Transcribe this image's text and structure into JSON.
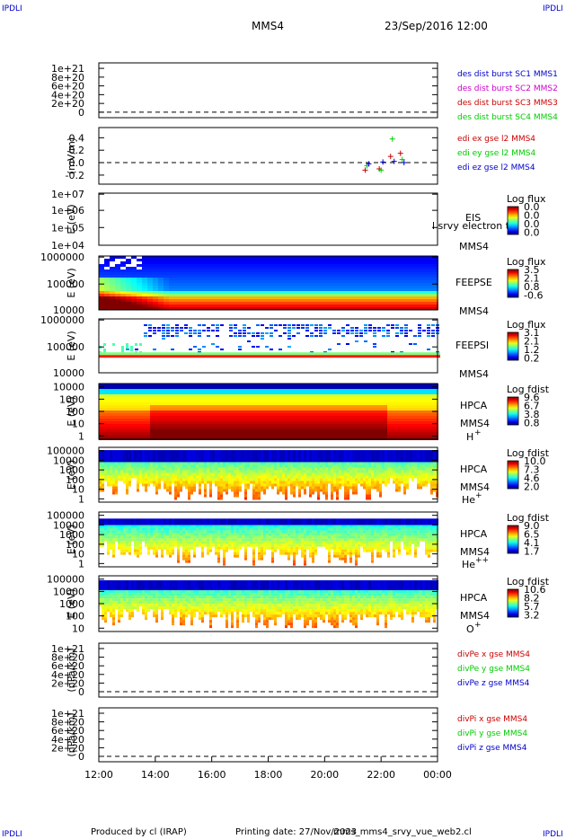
{
  "corner_label": "IPDLI",
  "header": {
    "mission": "MMS4",
    "datetime": "23/Sep/2016 12:00"
  },
  "footer": {
    "produced_by": "Produced by cl (IRAP)",
    "printing_date": "Printing date: 27/Nov/2023",
    "filename": "mms_mms4_srvy_vue_web2.cl"
  },
  "colors": {
    "red": "#cc0000",
    "green": "#00cc00",
    "blue": "#0000cc",
    "magenta": "#cc00cc",
    "black": "#000000"
  },
  "chart_data": {
    "type": "heatmap",
    "x_ticks": [
      "12:00",
      "14:00",
      "16:00",
      "18:00",
      "20:00",
      "22:00",
      "00:00"
    ],
    "x_range": [
      "12:00",
      "00:00"
    ],
    "panels": [
      {
        "id": "des-dist",
        "kind": "lines",
        "ylabel": "",
        "yticks": [
          "1e+21",
          "8e+20",
          "6e+20",
          "4e+20",
          "2e+20",
          "0"
        ],
        "legend": [
          {
            "text": "des dist burst SC1 MMS1",
            "color": "#0000cc"
          },
          {
            "text": "des dist burst SC2 MMS2",
            "color": "#cc00cc"
          },
          {
            "text": "des dist burst SC3 MMS3",
            "color": "#cc0000"
          },
          {
            "text": "des dist burst SC4 MMS4",
            "color": "#00cc00"
          }
        ]
      },
      {
        "id": "edi",
        "kind": "lines",
        "ylabel": "(mV/m)",
        "yticks": [
          "0.4",
          "0.2",
          "0.0",
          "-0.2"
        ],
        "legend": [
          {
            "text": "edi ex gse l2 MMS4",
            "color": "#cc0000"
          },
          {
            "text": "edi ey gse l2 MMS4",
            "color": "#00cc00"
          },
          {
            "text": "edi ez gse l2 MMS4",
            "color": "#0000cc"
          }
        ],
        "points": [
          {
            "t": 21.5,
            "ex": -0.12,
            "ey": -0.05,
            "ez": -0.02
          },
          {
            "t": 22.0,
            "ex": -0.1,
            "ey": -0.12,
            "ez": 0.01
          },
          {
            "t": 22.4,
            "ex": 0.1,
            "ey": 0.38,
            "ez": 0.02
          },
          {
            "t": 22.75,
            "ex": 0.15,
            "ey": 0.05,
            "ez": 0.0
          }
        ]
      },
      {
        "id": "eis",
        "kind": "spectro",
        "ylabel": "E (eV)",
        "yticks": [
          "1e+07",
          "1e+06",
          "1e+05",
          "1e+04"
        ],
        "right_label": [
          "EIS",
          "MMS4"
        ],
        "overlap_text": "l srvy electron to",
        "cbar_title": "Log flux",
        "cbar_ticks": [
          "0.0",
          "0.0",
          "0.0",
          "0.0"
        ]
      },
      {
        "id": "feepse",
        "kind": "spectro",
        "ylabel": "E (eV)",
        "yticks": [
          "1000000",
          "100000",
          "10000"
        ],
        "right_label": [
          "FEEPSE",
          "MMS4"
        ],
        "cbar_title": "Log flux",
        "cbar_ticks": [
          "3.5",
          "2.1",
          "0.8",
          "-0.6"
        ]
      },
      {
        "id": "feepsi",
        "kind": "spectro",
        "ylabel": "E (eV)",
        "yticks": [
          "1000000",
          "100000",
          "10000"
        ],
        "right_label": [
          "FEEPSI",
          "MMS4"
        ],
        "cbar_title": "Log flux",
        "cbar_ticks": [
          "3.1",
          "2.1",
          "1.2",
          "0.2"
        ]
      },
      {
        "id": "hpca-h",
        "kind": "spectro",
        "ylabel": "E (eV)",
        "yticks": [
          "10000",
          "1000",
          "100",
          "10",
          "1"
        ],
        "right_label": [
          "HPCA",
          "MMS4"
        ],
        "species": "H",
        "species_sup": "+",
        "cbar_title": "Log fdist",
        "cbar_ticks": [
          "9.6",
          "6.7",
          "3.8",
          "0.8"
        ]
      },
      {
        "id": "hpca-he",
        "kind": "spectro",
        "ylabel": "E (eV)",
        "yticks": [
          "100000",
          "10000",
          "1000",
          "100",
          "10",
          "1"
        ],
        "right_label": [
          "HPCA",
          "MMS4"
        ],
        "species": "He",
        "species_sup": "+",
        "cbar_title": "Log fdist",
        "cbar_ticks": [
          "10.0",
          "7.3",
          "4.6",
          "2.0"
        ]
      },
      {
        "id": "hpca-he2",
        "kind": "spectro",
        "ylabel": "E (eV)",
        "yticks": [
          "100000",
          "10000",
          "1000",
          "100",
          "10",
          "1"
        ],
        "right_label": [
          "HPCA",
          "MMS4"
        ],
        "species": "He",
        "species_sup": "++",
        "cbar_title": "Log fdist",
        "cbar_ticks": [
          "9.0",
          "6.5",
          "4.1",
          "1.7"
        ]
      },
      {
        "id": "hpca-o",
        "kind": "spectro",
        "ylabel": "E (eV)",
        "yticks": [
          "100000",
          "10000",
          "1000",
          "100",
          "10"
        ],
        "right_label": [
          "HPCA",
          "MMS4"
        ],
        "species": "O",
        "species_sup": "+",
        "cbar_title": "Log fdist",
        "cbar_ticks": [
          "10.6",
          "8.2",
          "5.7",
          "3.2"
        ]
      },
      {
        "id": "divpe",
        "kind": "lines",
        "ylabel": "(nPa/km)",
        "yticks": [
          "1e+21",
          "8e+20",
          "6e+20",
          "4e+20",
          "2e+20",
          "0"
        ],
        "legend": [
          {
            "text": "divPe x gse MMS4",
            "color": "#cc0000"
          },
          {
            "text": "divPe y gse MMS4",
            "color": "#00cc00"
          },
          {
            "text": "divPe z gse MMS4",
            "color": "#0000cc"
          }
        ]
      },
      {
        "id": "divpi",
        "kind": "lines",
        "ylabel": "(nPa/km)",
        "yticks": [
          "1e+21",
          "8e+20",
          "6e+20",
          "4e+20",
          "2e+20",
          "0"
        ],
        "legend": [
          {
            "text": "divPi x gse MMS4",
            "color": "#cc0000"
          },
          {
            "text": "divPi y gse MMS4",
            "color": "#00cc00"
          },
          {
            "text": "divPi z gse MMS4",
            "color": "#0000cc"
          }
        ]
      }
    ]
  }
}
